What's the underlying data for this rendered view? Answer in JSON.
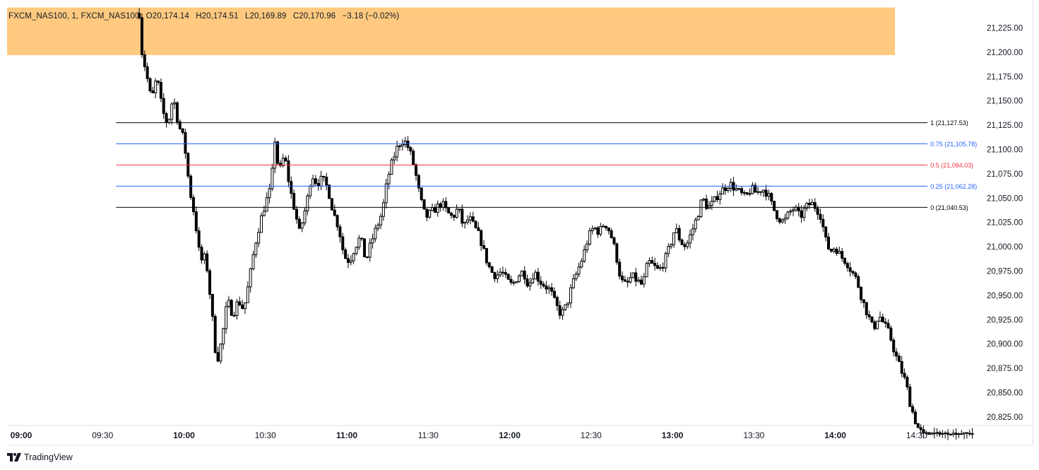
{
  "legend": {
    "symbol": "FXCM_NAS100, 1, FXCM_NAS100",
    "open": "O20,174.14",
    "high": "H20,174.51",
    "low": "L20,169.89",
    "close": "C20,170.96",
    "change": "−3.18 (−0.02%)"
  },
  "brand": {
    "name": "TradingView",
    "icon": "tradingview-logo-icon"
  },
  "colors": {
    "candle": "#000000",
    "zone_fill": "#ffca80",
    "fib_outer": "#000000",
    "fib_quarter": "#2962ff",
    "fib_mid": "#f23645",
    "axis_text": "#131722",
    "border": "#e0e3eb"
  },
  "chart_data": {
    "type": "candlestick",
    "timeframe": "1",
    "y_axis": {
      "range": [
        20810,
        21240
      ],
      "ticks": [
        21225,
        21200,
        21175,
        21150,
        21125,
        21100,
        21075,
        21050,
        21025,
        21000,
        20975,
        20950,
        20925,
        20900,
        20875,
        20850,
        20825
      ],
      "tick_labels": [
        "21,225.00",
        "21,200.00",
        "21,175.00",
        "21,150.00",
        "21,125.00",
        "21,100.00",
        "21,075.00",
        "21,050.00",
        "21,025.00",
        "21,000.00",
        "20,975.00",
        "20,950.00",
        "20,925.00",
        "20,900.00",
        "20,875.00",
        "20,850.00",
        "20,825.00"
      ]
    },
    "x_axis": {
      "ticks": [
        {
          "label": "09:00",
          "minute": 0,
          "bold": true
        },
        {
          "label": "09:30",
          "minute": 30,
          "bold": false
        },
        {
          "label": "10:00",
          "minute": 60,
          "bold": true
        },
        {
          "label": "10:30",
          "minute": 90,
          "bold": false
        },
        {
          "label": "11:00",
          "minute": 120,
          "bold": true
        },
        {
          "label": "11:30",
          "minute": 150,
          "bold": false
        },
        {
          "label": "12:00",
          "minute": 180,
          "bold": true
        },
        {
          "label": "12:30",
          "minute": 210,
          "bold": false
        },
        {
          "label": "13:00",
          "minute": 240,
          "bold": true
        },
        {
          "label": "13:30",
          "minute": 270,
          "bold": false
        },
        {
          "label": "14:00",
          "minute": 300,
          "bold": true
        },
        {
          "label": "14:30",
          "minute": 330,
          "bold": false
        }
      ]
    },
    "zone": {
      "price_low": 21197,
      "price_high": 21246,
      "from_minute": 0,
      "to_minute": 322
    },
    "fib_levels": [
      {
        "ratio": "1",
        "label": "1 (21,127.53)",
        "price": 21127.53,
        "color": "#000000"
      },
      {
        "ratio": "0.75",
        "label": "0.75 (21,105.78)",
        "price": 21105.78,
        "color": "#2962ff"
      },
      {
        "ratio": "0.5",
        "label": "0.5 (21,084.03)",
        "price": 21084.03,
        "color": "#f23645"
      },
      {
        "ratio": "0.25",
        "label": "0.25 (21,062.28)",
        "price": 21062.28,
        "color": "#2962ff"
      },
      {
        "ratio": "0",
        "label": "0 (21,040.53)",
        "price": 21040.53,
        "color": "#000000"
      }
    ],
    "fib_start_minute": 35,
    "fib_end_minute": 334,
    "path": [
      [
        43.5,
        21240
      ],
      [
        44.5,
        21200
      ],
      [
        46,
        21180
      ],
      [
        48,
        21150
      ],
      [
        50,
        21175
      ],
      [
        52,
        21140
      ],
      [
        54,
        21125
      ],
      [
        56,
        21155
      ],
      [
        58,
        21125
      ],
      [
        60,
        21110
      ],
      [
        62,
        21060
      ],
      [
        64,
        21030
      ],
      [
        66,
        20985
      ],
      [
        68,
        20990
      ],
      [
        70,
        20940
      ],
      [
        72,
        20880
      ],
      [
        74,
        20905
      ],
      [
        76,
        20945
      ],
      [
        78,
        20930
      ],
      [
        80,
        20945
      ],
      [
        82,
        20935
      ],
      [
        84,
        20965
      ],
      [
        86,
        21000
      ],
      [
        88,
        21025
      ],
      [
        90,
        21045
      ],
      [
        92,
        21060
      ],
      [
        93.5,
        21110
      ],
      [
        95,
        21075
      ],
      [
        97,
        21095
      ],
      [
        99,
        21060
      ],
      [
        101,
        21035
      ],
      [
        102.5,
        21015
      ],
      [
        104,
        21030
      ],
      [
        105.5,
        21050
      ],
      [
        107,
        21075
      ],
      [
        109,
        21065
      ],
      [
        111,
        21070
      ],
      [
        113,
        21060
      ],
      [
        115,
        21035
      ],
      [
        117,
        21020
      ],
      [
        119,
        20990
      ],
      [
        121,
        20985
      ],
      [
        123,
        21000
      ],
      [
        125,
        21010
      ],
      [
        127,
        20985
      ],
      [
        129,
        21005
      ],
      [
        131,
        21020
      ],
      [
        133,
        21035
      ],
      [
        135,
        21070
      ],
      [
        137,
        21090
      ],
      [
        139,
        21105
      ],
      [
        141,
        21110
      ],
      [
        143,
        21100
      ],
      [
        145,
        21080
      ],
      [
        147,
        21050
      ],
      [
        149,
        21030
      ],
      [
        151,
        21035
      ],
      [
        153,
        21040
      ],
      [
        155,
        21045
      ],
      [
        157,
        21035
      ],
      [
        159,
        21030
      ],
      [
        161,
        21040
      ],
      [
        163,
        21020
      ],
      [
        165,
        21030
      ],
      [
        167,
        21020
      ],
      [
        169,
        21010
      ],
      [
        171,
        20990
      ],
      [
        173,
        20975
      ],
      [
        175,
        20970
      ],
      [
        177,
        20975
      ],
      [
        179,
        20965
      ],
      [
        181,
        20960
      ],
      [
        183,
        20970
      ],
      [
        185,
        20975
      ],
      [
        187,
        20960
      ],
      [
        189,
        20975
      ],
      [
        191,
        20965
      ],
      [
        193,
        20960
      ],
      [
        195,
        20955
      ],
      [
        197,
        20940
      ],
      [
        199,
        20930
      ],
      [
        201,
        20940
      ],
      [
        203,
        20960
      ],
      [
        205,
        20975
      ],
      [
        207,
        20990
      ],
      [
        209,
        21010
      ],
      [
        211,
        21020
      ],
      [
        213,
        21015
      ],
      [
        215,
        21025
      ],
      [
        217,
        21015
      ],
      [
        219,
        20995
      ],
      [
        221,
        20965
      ],
      [
        223,
        20960
      ],
      [
        225,
        20970
      ],
      [
        227,
        20965
      ],
      [
        229,
        20960
      ],
      [
        231,
        20985
      ],
      [
        233,
        20980
      ],
      [
        235,
        20975
      ],
      [
        237,
        20985
      ],
      [
        239,
        21000
      ],
      [
        241,
        21020
      ],
      [
        243,
        21005
      ],
      [
        245,
        21000
      ],
      [
        247,
        21015
      ],
      [
        249,
        21030
      ],
      [
        251,
        21050
      ],
      [
        253,
        21040
      ],
      [
        255,
        21045
      ],
      [
        257,
        21055
      ],
      [
        259,
        21060
      ],
      [
        261,
        21065
      ],
      [
        263,
        21060
      ],
      [
        265,
        21055
      ],
      [
        267,
        21050
      ],
      [
        269,
        21060
      ],
      [
        271,
        21055
      ],
      [
        273,
        21060
      ],
      [
        275,
        21055
      ],
      [
        277,
        21040
      ],
      [
        279,
        21030
      ],
      [
        281,
        21025
      ],
      [
        283,
        21035
      ],
      [
        285,
        21040
      ],
      [
        287,
        21030
      ],
      [
        289,
        21040
      ],
      [
        291,
        21045
      ],
      [
        293,
        21040
      ],
      [
        295,
        21030
      ],
      [
        296,
        21010
      ],
      [
        298,
        20995
      ],
      [
        300,
        21000
      ],
      [
        302,
        20990
      ],
      [
        304,
        20985
      ],
      [
        306,
        20975
      ],
      [
        308,
        20965
      ],
      [
        310,
        20945
      ],
      [
        312,
        20930
      ],
      [
        314,
        20915
      ],
      [
        316,
        20930
      ],
      [
        318,
        20920
      ],
      [
        320,
        20910
      ],
      [
        322,
        20890
      ],
      [
        324,
        20875
      ],
      [
        326,
        20860
      ],
      [
        327.5,
        20840
      ],
      [
        329,
        20825
      ],
      [
        331,
        20810
      ],
      [
        333,
        20808
      ],
      [
        345,
        20808
      ]
    ]
  }
}
